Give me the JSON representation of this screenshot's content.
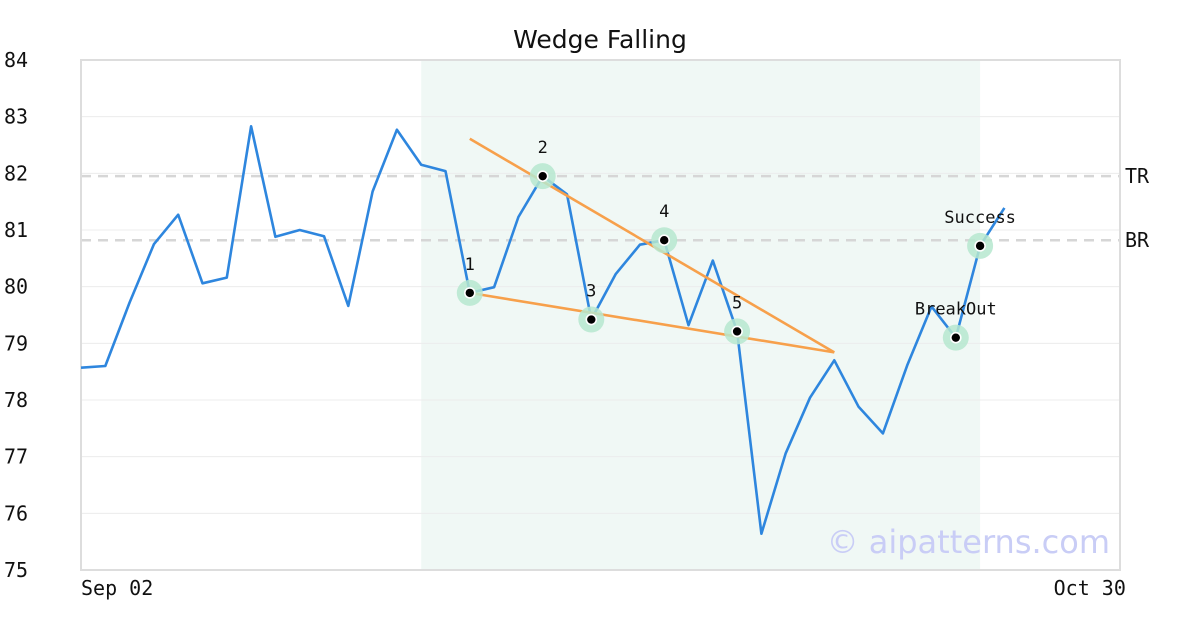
{
  "chart_data": {
    "type": "line",
    "title": "Wedge Falling",
    "xlabel": "",
    "ylabel": "",
    "ylim": [
      75,
      84
    ],
    "yticks": [
      75,
      76,
      77,
      78,
      79,
      80,
      81,
      82,
      83,
      84
    ],
    "xticks": [
      {
        "index": 0,
        "label": "Sep 02"
      },
      {
        "index": 43,
        "label": "Oct 30"
      }
    ],
    "x_range": [
      0,
      43
    ],
    "grid": true,
    "colors": {
      "line": "#2e86de",
      "trend": "#f7a04b",
      "highlight": "#e6f4ee",
      "marker_halo": "#b6e8cf",
      "reference": "#d6d6d6",
      "watermark": "#c9cdf6"
    },
    "series": [
      {
        "values": [
          78.57,
          78.6,
          79.72,
          80.75,
          81.27,
          80.06,
          80.16,
          82.83,
          80.88,
          81.0,
          80.89,
          79.66,
          81.68,
          82.77,
          82.15,
          82.04,
          79.89,
          79.99,
          81.23,
          81.95,
          81.63,
          79.42,
          80.22,
          80.74,
          80.82,
          79.32,
          80.46,
          79.21,
          75.64,
          77.06,
          78.04,
          78.7,
          77.88,
          77.41,
          78.61,
          79.65,
          79.1,
          80.72,
          81.39
        ]
      }
    ],
    "highlight_range": [
      14,
      37
    ],
    "trendlines": [
      {
        "start": [
          16,
          82.61
        ],
        "end": [
          31,
          78.84
        ]
      },
      {
        "start": [
          16,
          79.89
        ],
        "end": [
          31,
          78.84
        ]
      }
    ],
    "points": [
      {
        "index": 16,
        "value": 79.89,
        "label": "1"
      },
      {
        "index": 19,
        "value": 81.95,
        "label": "2"
      },
      {
        "index": 21,
        "value": 79.42,
        "label": "3"
      },
      {
        "index": 24,
        "value": 80.82,
        "label": "4"
      },
      {
        "index": 27,
        "value": 79.21,
        "label": "5"
      },
      {
        "index": 36,
        "value": 79.1,
        "label": "BreakOut"
      },
      {
        "index": 37,
        "value": 80.72,
        "label": "Success"
      }
    ],
    "reference_lines": [
      {
        "value": 81.95,
        "label": "TR"
      },
      {
        "value": 80.82,
        "label": "BR"
      }
    ],
    "watermark": "© aipatterns.com"
  }
}
